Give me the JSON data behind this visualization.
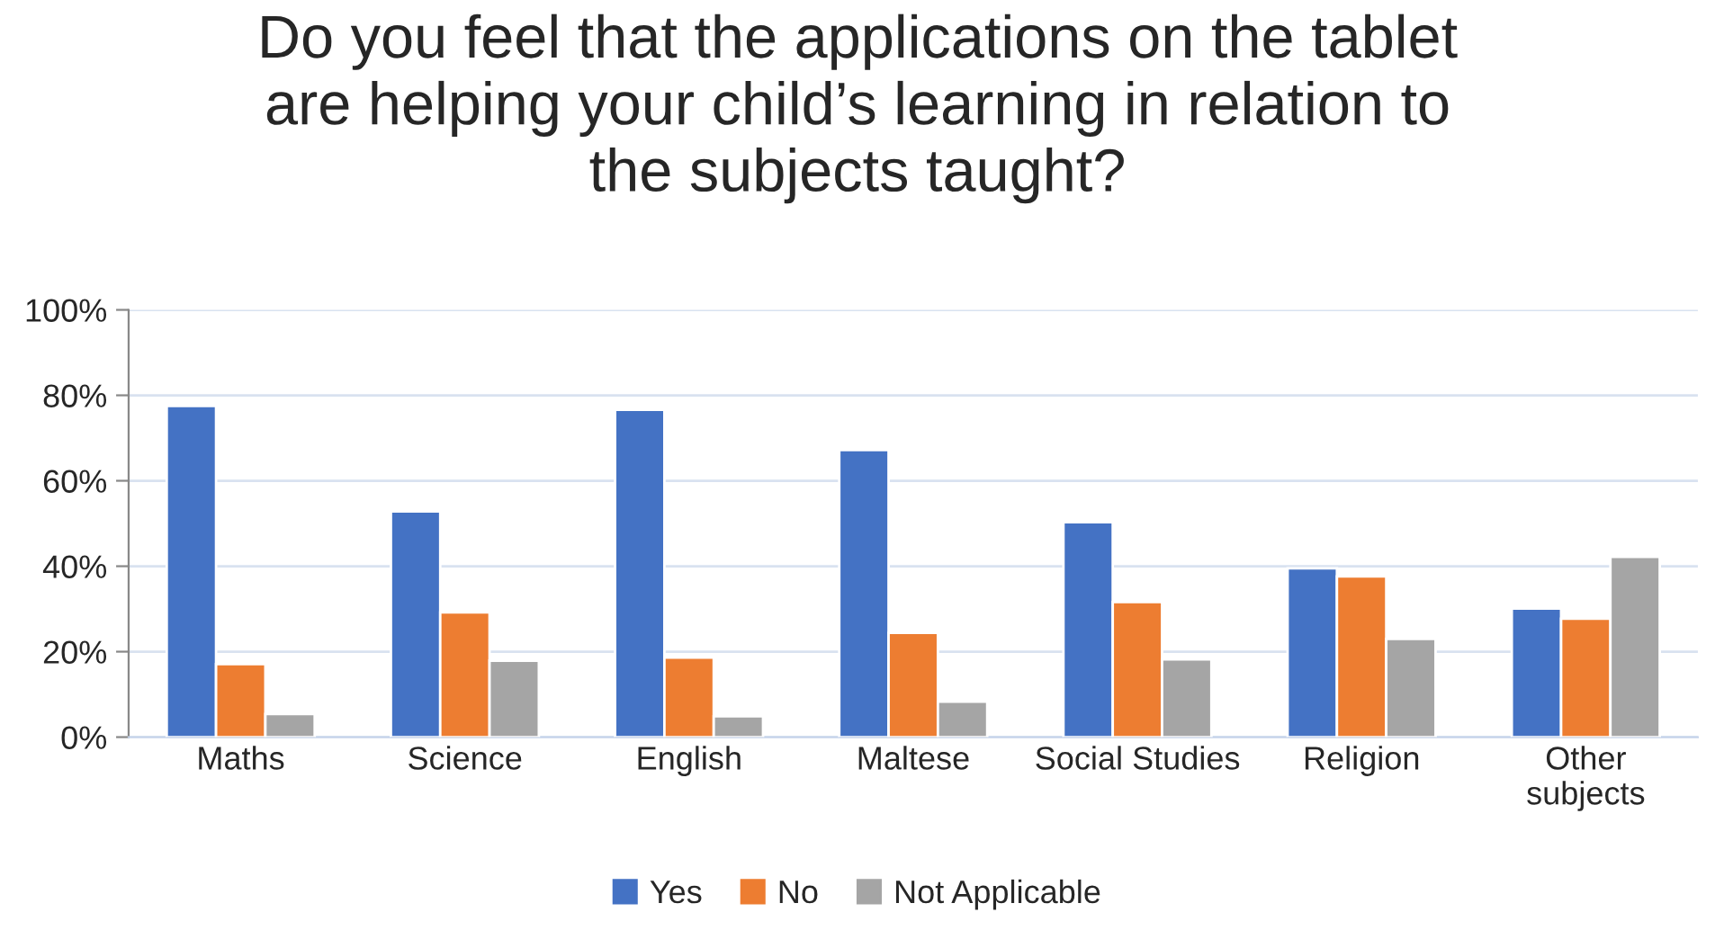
{
  "chart_data": {
    "type": "bar",
    "title": "Do you feel that the applications on the tablet\nare helping your child’s learning in relation to\nthe subjects taught?",
    "categories": [
      "Maths",
      "Science",
      "English",
      "Maltese",
      "Social Studies",
      "Religion",
      "Other\nsubjects"
    ],
    "series": [
      {
        "name": "Yes",
        "color": "#4472c4",
        "values": [
          77.5,
          52.8,
          76.6,
          67.2,
          50.3,
          39.5,
          30.1
        ]
      },
      {
        "name": "No",
        "color": "#ed7d31",
        "values": [
          17.1,
          29.2,
          18.6,
          24.4,
          31.6,
          37.6,
          27.7
        ]
      },
      {
        "name": "Not Applicable",
        "color": "#a5a5a5",
        "values": [
          5.4,
          17.9,
          4.9,
          8.3,
          18.2,
          23.0,
          42.2
        ]
      }
    ],
    "ylim": [
      0,
      100
    ],
    "yticks": [
      {
        "value": 0,
        "label": "0%"
      },
      {
        "value": 20,
        "label": "20%"
      },
      {
        "value": 40,
        "label": "40%"
      },
      {
        "value": 60,
        "label": "60%"
      },
      {
        "value": 80,
        "label": "80%"
      },
      {
        "value": 100,
        "label": "100%"
      }
    ],
    "grid": "y",
    "legend": "bottom"
  }
}
